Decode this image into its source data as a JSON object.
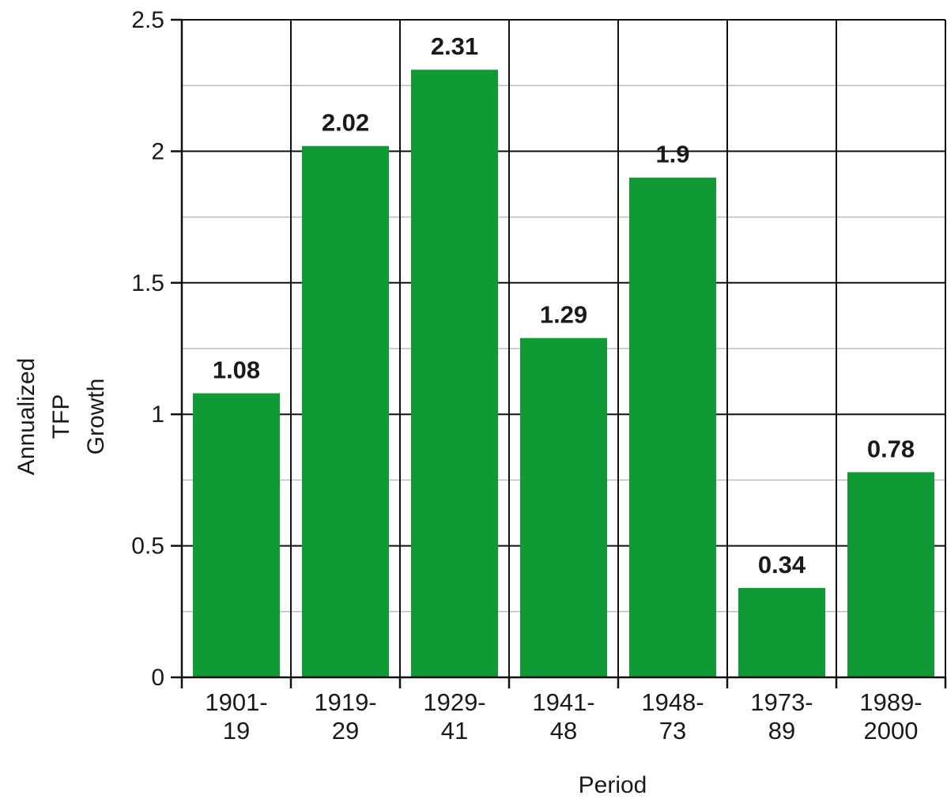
{
  "chart_data": {
    "type": "bar",
    "categories": [
      [
        "1901-",
        "19"
      ],
      [
        "1919-",
        "29"
      ],
      [
        "1929-",
        "41"
      ],
      [
        "1941-",
        "48"
      ],
      [
        "1948-",
        "73"
      ],
      [
        "1973-",
        "89"
      ],
      [
        "1989-",
        "2000"
      ]
    ],
    "values": [
      1.08,
      2.02,
      2.31,
      1.29,
      1.9,
      0.34,
      0.78
    ],
    "data_labels": [
      "1.08",
      "2.02",
      "2.31",
      "1.29",
      "1.9",
      "0.34",
      "0.78"
    ],
    "yticks": [
      "0",
      "0.5",
      "1",
      "1.5",
      "2",
      "2.5"
    ],
    "ylim": [
      0,
      2.5
    ],
    "xlabel": "Period",
    "ylabel": [
      "Annualized",
      "TFP",
      "Growth"
    ],
    "grid": true,
    "bar_color": "#0f9a36",
    "major_grid_color": "#111111",
    "minor_grid_color": "#bdbdbd"
  }
}
